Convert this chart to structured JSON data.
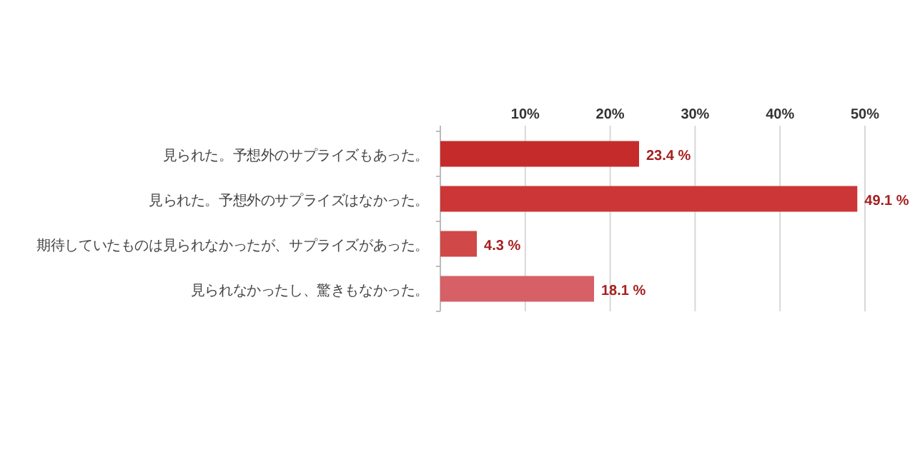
{
  "chart_data": {
    "type": "bar",
    "orientation": "horizontal",
    "categories": [
      "見られた。予想外のサプライズもあった。",
      "見られた。予想外のサプライズはなかった。",
      "期待していたものは見られなかったが、サプライズがあった。",
      "見られなかったし、驚きもなかった。"
    ],
    "values": [
      23.4,
      49.1,
      4.3,
      18.1
    ],
    "colors": [
      "#c62b2b",
      "#cc3636",
      "#d04848",
      "#d66066"
    ],
    "value_labels": [
      "23.4 %",
      "49.1 %",
      "4.3 %",
      "18.1 %"
    ],
    "xlim": [
      0,
      50
    ],
    "xticks": [
      {
        "value": 0,
        "label": null
      },
      {
        "value": 10,
        "label": "10%"
      },
      {
        "value": 20,
        "label": "20%"
      },
      {
        "value": 30,
        "label": "30%"
      },
      {
        "value": 40,
        "label": "40%"
      },
      {
        "value": 50,
        "label": "50%"
      }
    ],
    "grid": "x"
  }
}
